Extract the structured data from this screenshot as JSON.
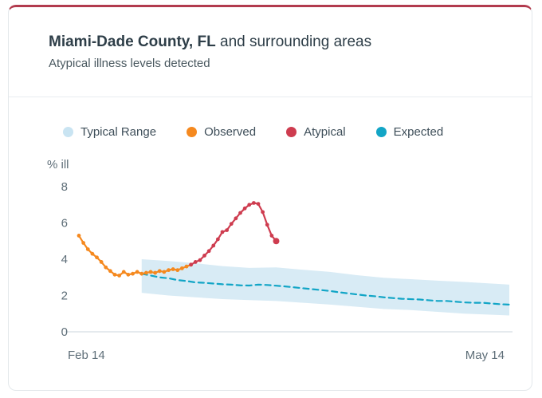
{
  "card": {
    "title_bold": "Miami-Dade County, FL",
    "title_rest": " and surrounding areas",
    "subtitle": "Atypical illness levels detected"
  },
  "colors": {
    "accent_top": "#B23B4E",
    "typical_range_fill": "#D8EBF5",
    "observed": "#F5891F",
    "atypical": "#CE3C4F",
    "expected": "#12A5C6"
  },
  "legend": [
    {
      "label": "Typical Range",
      "color": "#C9E4F2"
    },
    {
      "label": "Observed",
      "color": "#F5891F"
    },
    {
      "label": "Atypical",
      "color": "#CE3C4F"
    },
    {
      "label": "Expected",
      "color": "#12A5C6"
    }
  ],
  "chart_data": {
    "type": "line",
    "title": "Miami-Dade County, FL and surrounding areas",
    "subtitle": "Atypical illness levels detected",
    "ylabel": "% ill",
    "ylim": [
      0,
      8
    ],
    "yticks": [
      0,
      2,
      4,
      6,
      8
    ],
    "x_domain": [
      0,
      96
    ],
    "x_axis_labels": [
      "Feb 14",
      "May 14"
    ],
    "x_axis_label_days": [
      0,
      89
    ],
    "grid": false,
    "legend_position": "top",
    "band": {
      "name": "Typical Range",
      "color": "#D8EBF5",
      "x": [
        14,
        20,
        26,
        32,
        38,
        44,
        50,
        56,
        62,
        68,
        74,
        80,
        86,
        96
      ],
      "upper": [
        4.0,
        3.9,
        3.78,
        3.62,
        3.52,
        3.55,
        3.42,
        3.3,
        3.12,
        2.98,
        2.9,
        2.82,
        2.75,
        2.6
      ],
      "lower": [
        2.15,
        2.0,
        1.9,
        1.8,
        1.75,
        1.7,
        1.6,
        1.5,
        1.38,
        1.26,
        1.2,
        1.1,
        1.0,
        0.9
      ]
    },
    "series": [
      {
        "name": "Expected",
        "color": "#12A5C6",
        "dash": true,
        "dots": false,
        "x": [
          14,
          16,
          18,
          20,
          22,
          24,
          26,
          28,
          30,
          32,
          34,
          36,
          38,
          40,
          42,
          44,
          46,
          48,
          50,
          52,
          54,
          56,
          58,
          60,
          62,
          64,
          66,
          68,
          70,
          72,
          74,
          76,
          78,
          80,
          82,
          84,
          86,
          88,
          90,
          92,
          94,
          96
        ],
        "values": [
          3.2,
          3.1,
          3.0,
          2.95,
          2.85,
          2.8,
          2.72,
          2.7,
          2.66,
          2.62,
          2.6,
          2.56,
          2.55,
          2.6,
          2.58,
          2.54,
          2.5,
          2.45,
          2.4,
          2.35,
          2.3,
          2.25,
          2.18,
          2.12,
          2.06,
          2.0,
          1.96,
          1.9,
          1.86,
          1.82,
          1.8,
          1.78,
          1.74,
          1.7,
          1.7,
          1.66,
          1.62,
          1.6,
          1.6,
          1.56,
          1.52,
          1.5
        ]
      },
      {
        "name": "Observed",
        "color": "#F5891F",
        "dash": false,
        "dots": true,
        "x": [
          0,
          1,
          2,
          3,
          4,
          5,
          6,
          7,
          8,
          9,
          10,
          11,
          12,
          13,
          14,
          15,
          16,
          17,
          18,
          19,
          20,
          21,
          22,
          23,
          24,
          25
        ],
        "values": [
          5.3,
          4.9,
          4.55,
          4.3,
          4.1,
          3.85,
          3.55,
          3.35,
          3.15,
          3.1,
          3.3,
          3.15,
          3.2,
          3.3,
          3.2,
          3.25,
          3.3,
          3.25,
          3.35,
          3.3,
          3.4,
          3.45,
          3.4,
          3.5,
          3.6,
          3.7
        ]
      },
      {
        "name": "Atypical",
        "color": "#CE3C4F",
        "dash": false,
        "dots": true,
        "end_dot": true,
        "x": [
          25,
          26,
          27,
          28,
          29,
          30,
          31,
          32,
          33,
          34,
          35,
          36,
          37,
          38,
          39,
          40,
          41,
          42,
          43,
          44
        ],
        "values": [
          3.7,
          3.85,
          3.95,
          4.2,
          4.45,
          4.75,
          5.1,
          5.5,
          5.6,
          5.95,
          6.25,
          6.55,
          6.8,
          7.0,
          7.1,
          7.05,
          6.6,
          5.9,
          5.3,
          5.0
        ]
      }
    ]
  }
}
